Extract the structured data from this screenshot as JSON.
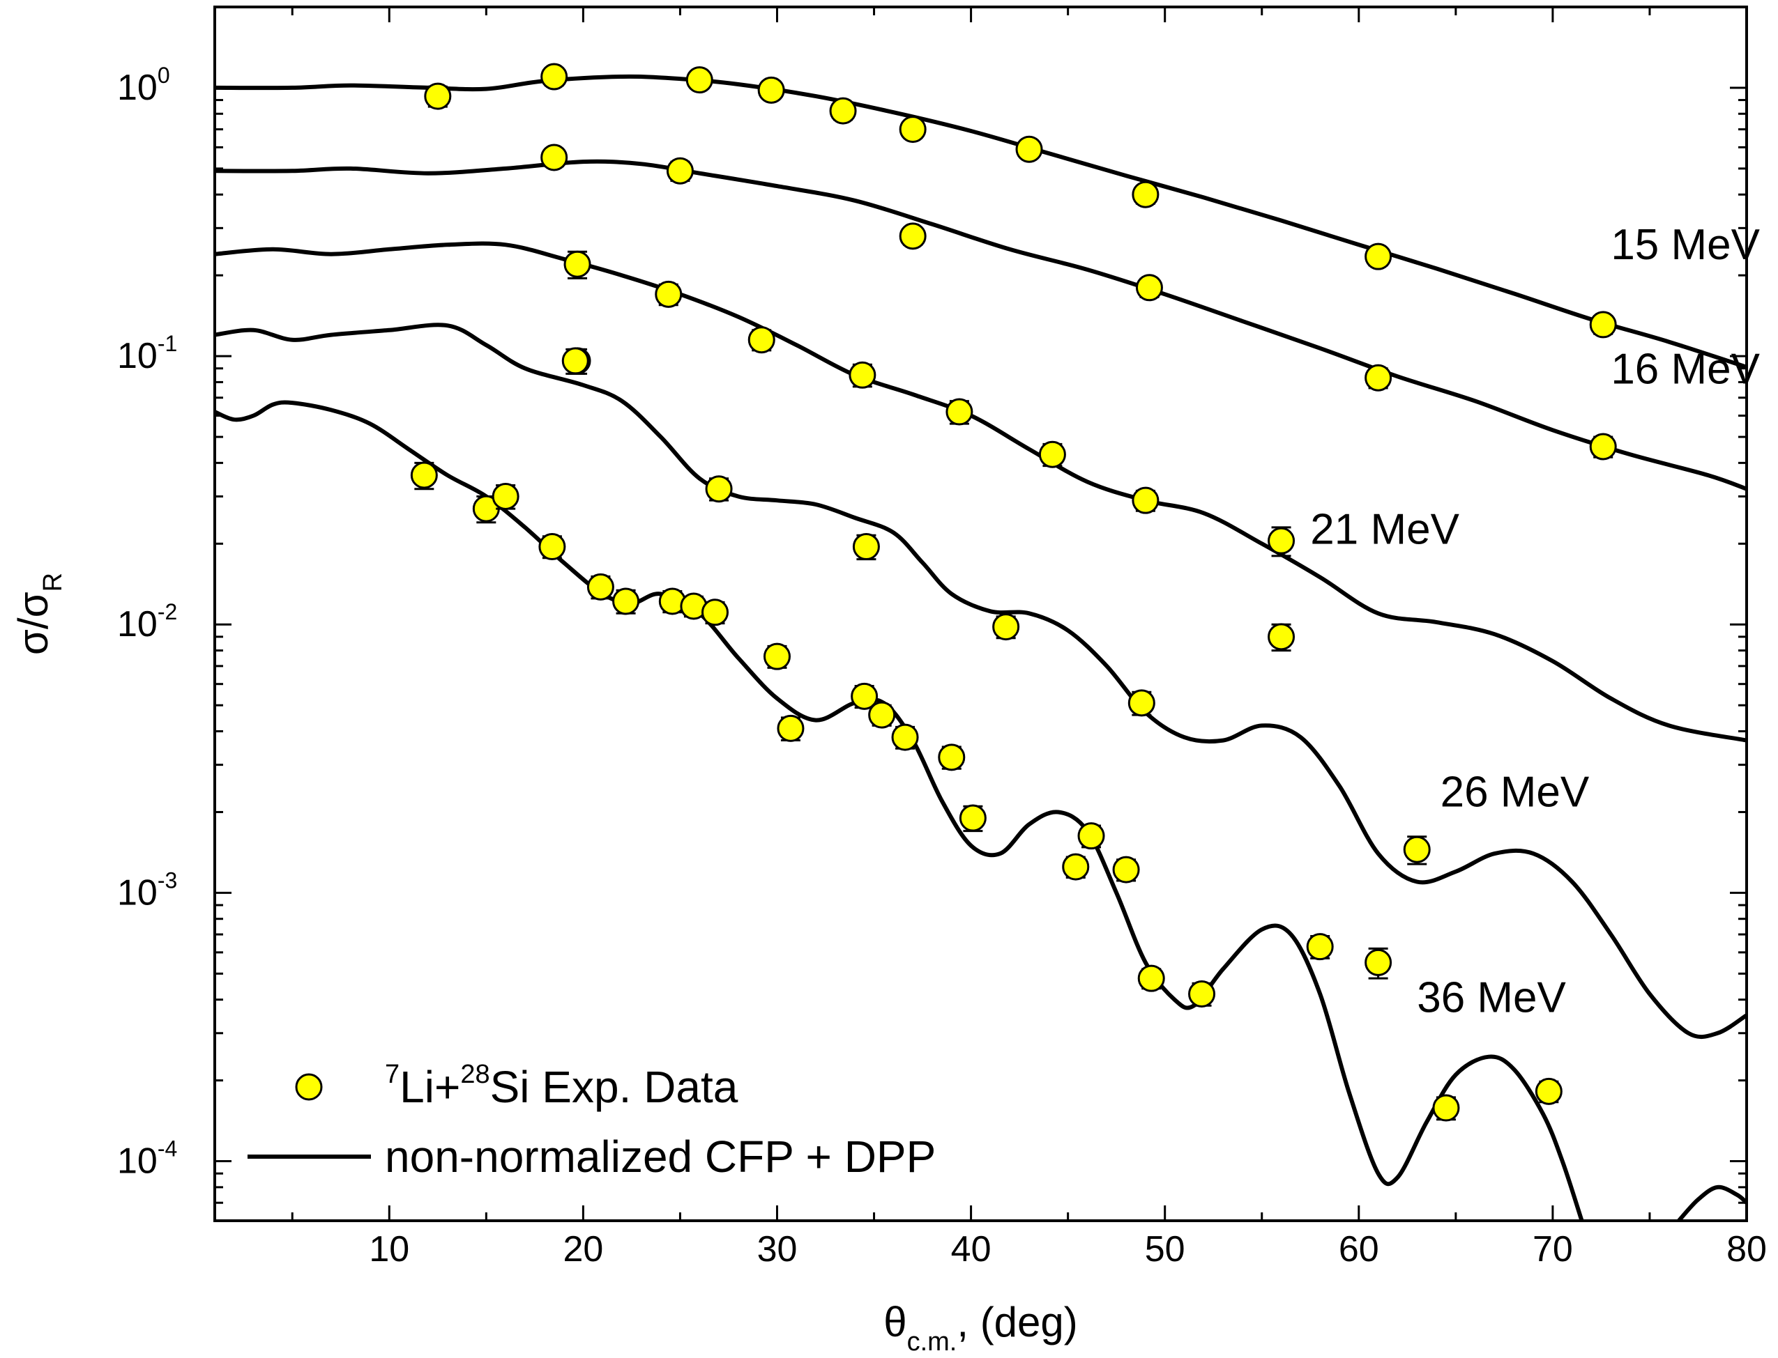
{
  "chart_data": {
    "type": "scatter",
    "title": "",
    "xlabel": {
      "main": "θ",
      "sub": "c.m.",
      "rest": ", (deg)"
    },
    "ylabel": {
      "main": "σ/σ",
      "sub": "R"
    },
    "xlim": [
      1,
      80
    ],
    "ylim": [
      6e-05,
      2.0
    ],
    "yscale": "log",
    "grid": false,
    "legend_position": "bottom-left",
    "x_ticks": [
      10,
      20,
      30,
      40,
      50,
      60,
      70,
      80
    ],
    "y_ticks": [
      {
        "value": 1,
        "base": "10",
        "exp": "0"
      },
      {
        "value": 0.1,
        "base": "10",
        "exp": "-1"
      },
      {
        "value": 0.01,
        "base": "10",
        "exp": "-2"
      },
      {
        "value": 0.001,
        "base": "10",
        "exp": "-3"
      },
      {
        "value": 0.0001,
        "base": "10",
        "exp": "-4"
      }
    ],
    "legend": [
      {
        "kind": "marker",
        "pre_sup": "7",
        "text1": "Li+",
        "sup2": "28",
        "text2": "Si Exp. Data"
      },
      {
        "kind": "line",
        "text": "non-normalized CFP + DPP"
      }
    ],
    "colors": {
      "marker_fill": "#ffff00",
      "marker_edge": "#000000",
      "line": "#000000"
    },
    "series": [
      {
        "name": "15 MeV",
        "label_pos": [
          73,
          0.23
        ],
        "points": [
          [
            12.5,
            0.93,
            0.08
          ],
          [
            18.5,
            1.1,
            0.08
          ],
          [
            26,
            1.07,
            0.07
          ],
          [
            29.7,
            0.98,
            0.06
          ],
          [
            33.4,
            0.82,
            0.06
          ],
          [
            37,
            0.7,
            0.05
          ],
          [
            43,
            0.59,
            0.04
          ],
          [
            49,
            0.4,
            0.03
          ],
          [
            61,
            0.235,
            0.017
          ],
          [
            72.6,
            0.131,
            0.01
          ]
        ],
        "curve": [
          [
            1,
            1.0
          ],
          [
            5,
            1.0
          ],
          [
            8,
            1.02
          ],
          [
            12,
            1.0
          ],
          [
            15,
            0.99
          ],
          [
            18,
            1.06
          ],
          [
            22,
            1.1
          ],
          [
            25,
            1.08
          ],
          [
            28,
            1.03
          ],
          [
            32,
            0.93
          ],
          [
            36,
            0.81
          ],
          [
            40,
            0.69
          ],
          [
            44,
            0.57
          ],
          [
            48,
            0.47
          ],
          [
            52,
            0.39
          ],
          [
            56,
            0.32
          ],
          [
            60,
            0.26
          ],
          [
            64,
            0.212
          ],
          [
            68,
            0.171
          ],
          [
            72,
            0.137
          ],
          [
            76,
            0.113
          ],
          [
            80,
            0.091
          ]
        ]
      },
      {
        "name": "16 MeV",
        "label_pos": [
          73,
          0.079
        ],
        "points": [
          [
            18.5,
            0.55,
            0.04
          ],
          [
            25,
            0.49,
            0.04
          ],
          [
            37,
            0.28,
            0.02
          ],
          [
            49.2,
            0.18,
            0.014
          ],
          [
            61,
            0.083,
            0.007
          ],
          [
            72.6,
            0.046,
            0.004
          ]
        ],
        "curve": [
          [
            1,
            0.49
          ],
          [
            5,
            0.49
          ],
          [
            8,
            0.5
          ],
          [
            12,
            0.48
          ],
          [
            16,
            0.5
          ],
          [
            20,
            0.53
          ],
          [
            23,
            0.52
          ],
          [
            26,
            0.48
          ],
          [
            30,
            0.43
          ],
          [
            34,
            0.38
          ],
          [
            38,
            0.31
          ],
          [
            42,
            0.25
          ],
          [
            46,
            0.21
          ],
          [
            50,
            0.17
          ],
          [
            54,
            0.135
          ],
          [
            58,
            0.107
          ],
          [
            62,
            0.084
          ],
          [
            66,
            0.068
          ],
          [
            70,
            0.053
          ],
          [
            74,
            0.043
          ],
          [
            78,
            0.036
          ],
          [
            80,
            0.032
          ]
        ]
      },
      {
        "name": "21 MeV",
        "label_pos": [
          57.5,
          0.02
        ],
        "points": [
          [
            19.7,
            0.22,
            0.025
          ],
          [
            24.4,
            0.17,
            0.015
          ],
          [
            19.7,
            0.096,
            0.01
          ],
          [
            29.2,
            0.115,
            0.01
          ],
          [
            34.4,
            0.085,
            0.008
          ],
          [
            39.4,
            0.062,
            0.006
          ],
          [
            44.2,
            0.043,
            0.004
          ],
          [
            49,
            0.029,
            0.0025
          ],
          [
            56,
            0.0205,
            0.0025
          ],
          [
            56,
            0.009,
            0.001
          ]
        ],
        "curve": [
          [
            1,
            0.24
          ],
          [
            4,
            0.25
          ],
          [
            7,
            0.24
          ],
          [
            10,
            0.25
          ],
          [
            13,
            0.26
          ],
          [
            16,
            0.26
          ],
          [
            19,
            0.23
          ],
          [
            22,
            0.2
          ],
          [
            25,
            0.17
          ],
          [
            28,
            0.14
          ],
          [
            31,
            0.11
          ],
          [
            34,
            0.085
          ],
          [
            37,
            0.072
          ],
          [
            40,
            0.06
          ],
          [
            43,
            0.045
          ],
          [
            46,
            0.034
          ],
          [
            49,
            0.029
          ],
          [
            52,
            0.026
          ],
          [
            55,
            0.02
          ],
          [
            58,
            0.015
          ],
          [
            61,
            0.011
          ],
          [
            64,
            0.0102
          ],
          [
            67,
            0.0092
          ],
          [
            70,
            0.0073
          ],
          [
            73,
            0.0053
          ],
          [
            76,
            0.0042
          ],
          [
            80,
            0.0037
          ]
        ]
      },
      {
        "name": "26 MeV",
        "label_pos": [
          64.2,
          0.0021
        ],
        "points": [
          [
            19.6,
            0.096,
            0.01
          ],
          [
            27,
            0.032,
            0.003
          ],
          [
            34.6,
            0.0195,
            0.002
          ],
          [
            41.8,
            0.0098,
            0.0009
          ],
          [
            48.8,
            0.0051,
            0.0005
          ],
          [
            63,
            0.00145,
            0.00017
          ]
        ],
        "curve": [
          [
            1,
            0.12
          ],
          [
            3,
            0.125
          ],
          [
            5,
            0.115
          ],
          [
            7,
            0.12
          ],
          [
            10,
            0.125
          ],
          [
            13,
            0.13
          ],
          [
            15,
            0.11
          ],
          [
            17,
            0.09
          ],
          [
            20,
            0.078
          ],
          [
            22,
            0.068
          ],
          [
            24,
            0.05
          ],
          [
            26,
            0.035
          ],
          [
            28,
            0.03
          ],
          [
            30,
            0.029
          ],
          [
            32,
            0.028
          ],
          [
            34,
            0.025
          ],
          [
            36,
            0.022
          ],
          [
            37.5,
            0.017
          ],
          [
            39,
            0.013
          ],
          [
            41,
            0.0112
          ],
          [
            43,
            0.011
          ],
          [
            45,
            0.0095
          ],
          [
            47,
            0.007
          ],
          [
            49,
            0.0047
          ],
          [
            51,
            0.0038
          ],
          [
            53,
            0.0037
          ],
          [
            55,
            0.0042
          ],
          [
            57,
            0.0038
          ],
          [
            59,
            0.0025
          ],
          [
            61,
            0.0014
          ],
          [
            63,
            0.0011
          ],
          [
            65,
            0.0012
          ],
          [
            67,
            0.0014
          ],
          [
            69,
            0.0014
          ],
          [
            71,
            0.0011
          ],
          [
            73,
            0.0007
          ],
          [
            75,
            0.00042
          ],
          [
            77,
            0.0003
          ],
          [
            78.5,
            0.0003
          ],
          [
            80,
            0.00035
          ]
        ]
      },
      {
        "name": "36 MeV",
        "label_pos": [
          63,
          0.00036
        ],
        "points": [
          [
            11.8,
            0.036,
            0.004
          ],
          [
            15,
            0.027,
            0.003
          ],
          [
            16,
            0.03,
            0.003
          ],
          [
            18.4,
            0.0195,
            0.0018
          ],
          [
            20.9,
            0.0138,
            0.0013
          ],
          [
            22.2,
            0.0122,
            0.0012
          ],
          [
            24.6,
            0.0122,
            0.0011
          ],
          [
            25.7,
            0.0117,
            0.001
          ],
          [
            26.8,
            0.0111,
            0.001
          ],
          [
            30,
            0.0076,
            0.0007
          ],
          [
            30.7,
            0.0041,
            0.0004
          ],
          [
            34.5,
            0.0054,
            0.0005
          ],
          [
            35.4,
            0.0046,
            0.0004
          ],
          [
            36.6,
            0.0038,
            0.00035
          ],
          [
            39,
            0.0032,
            0.0003
          ],
          [
            40.1,
            0.0019,
            0.0002
          ],
          [
            45.4,
            0.00125,
            0.00011
          ],
          [
            46.2,
            0.00163,
            0.00015
          ],
          [
            48,
            0.00122,
            0.00011
          ],
          [
            49.3,
            0.00048,
            4e-05
          ],
          [
            51.9,
            0.00042,
            4e-05
          ],
          [
            58,
            0.00063,
            6e-05
          ],
          [
            61,
            0.00055,
            7e-05
          ],
          [
            64.5,
            0.000158,
            1.5e-05
          ],
          [
            69.8,
            0.000182,
            1.6e-05
          ]
        ]
      }
    ],
    "curve_36": [
      [
        1,
        0.062
      ],
      [
        2,
        0.058
      ],
      [
        3,
        0.06
      ],
      [
        4,
        0.066
      ],
      [
        5,
        0.067
      ],
      [
        7,
        0.063
      ],
      [
        9,
        0.056
      ],
      [
        11,
        0.045
      ],
      [
        13,
        0.036
      ],
      [
        15,
        0.03
      ],
      [
        17,
        0.023
      ],
      [
        19,
        0.017
      ],
      [
        21,
        0.013
      ],
      [
        22.5,
        0.012
      ],
      [
        24,
        0.013
      ],
      [
        26,
        0.011
      ],
      [
        28,
        0.0075
      ],
      [
        30,
        0.0053
      ],
      [
        32,
        0.0044
      ],
      [
        34,
        0.0051
      ],
      [
        35.5,
        0.0051
      ],
      [
        37,
        0.0037
      ],
      [
        38.5,
        0.0022
      ],
      [
        40,
        0.0015
      ],
      [
        41.5,
        0.0014
      ],
      [
        43,
        0.0018
      ],
      [
        44.5,
        0.002
      ],
      [
        46,
        0.0017
      ],
      [
        47.5,
        0.001
      ],
      [
        49,
        0.00055
      ],
      [
        50.5,
        0.0004
      ],
      [
        51.5,
        0.00038
      ],
      [
        53,
        0.00052
      ],
      [
        55,
        0.00073
      ],
      [
        56.5,
        0.0007
      ],
      [
        58,
        0.00042
      ],
      [
        59.5,
        0.00018
      ],
      [
        61,
        9e-05
      ],
      [
        62,
        8.7e-05
      ],
      [
        63.5,
        0.00014
      ],
      [
        65,
        0.00021
      ],
      [
        66.7,
        0.000245
      ],
      [
        68,
        0.00022
      ],
      [
        69.5,
        0.00015
      ],
      [
        70.5,
        0.0001
      ],
      [
        71.5,
        6e-05
      ]
    ],
    "curve_36_tail": [
      [
        76.5,
        6e-05
      ],
      [
        77.5,
        7.2e-05
      ],
      [
        78.5,
        8e-05
      ],
      [
        79.5,
        7.5e-05
      ],
      [
        80,
        7e-05
      ]
    ]
  }
}
